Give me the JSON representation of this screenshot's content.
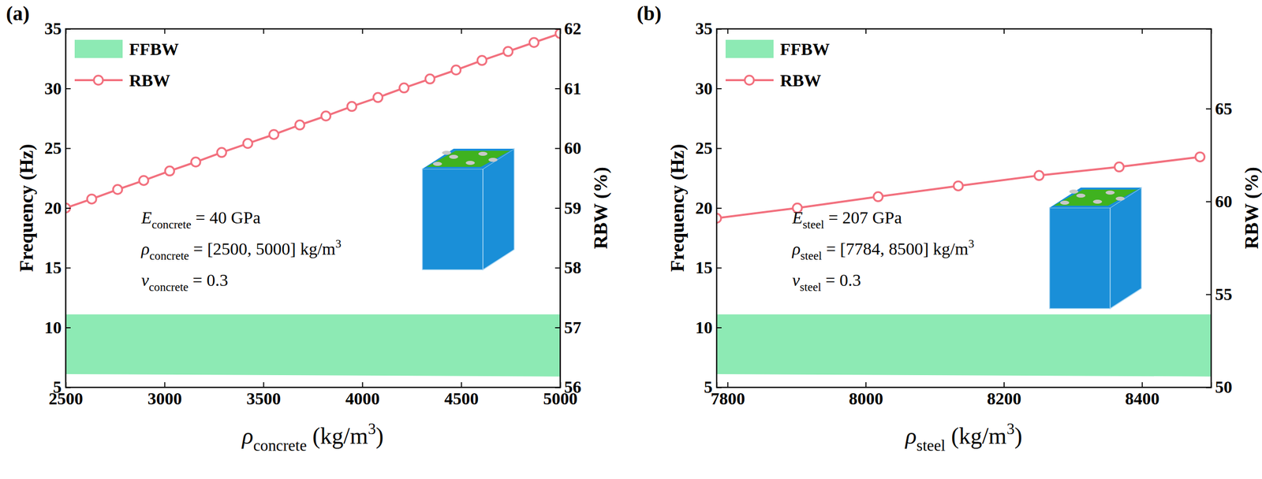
{
  "chart_data": [
    {
      "type": "line",
      "panel_label": "(a)",
      "xlabel": [
        {
          "text": "ρ",
          "style": "italic"
        },
        {
          "text": "concrete",
          "style": "sub"
        },
        {
          "text": " (kg/m"
        },
        {
          "text": "3",
          "style": "sup"
        },
        {
          "text": ")"
        }
      ],
      "ylabel": "Frequency (Hz)",
      "y2label": "RBW (%)",
      "xlim": [
        2500,
        5000
      ],
      "xticks": [
        2500,
        3000,
        3500,
        4000,
        4500,
        5000
      ],
      "ylim": [
        5,
        35
      ],
      "yticks": [
        5,
        10,
        15,
        20,
        25,
        30,
        35
      ],
      "y2lim": [
        56,
        62
      ],
      "y2ticks": [
        56,
        57,
        58,
        59,
        60,
        61,
        62
      ],
      "legend": "upper left",
      "annotations": [
        [
          {
            "text": "E",
            "style": "italic"
          },
          {
            "text": "concrete",
            "style": "sub"
          },
          {
            "text": " = 40 GPa"
          }
        ],
        [
          {
            "text": "ρ",
            "style": "italic"
          },
          {
            "text": "concrete",
            "style": "sub"
          },
          {
            "text": " = [2500, 5000] kg/m"
          },
          {
            "text": "3",
            "style": "sup"
          }
        ],
        [
          {
            "text": "ν",
            "style": "italic"
          },
          {
            "text": "concrete",
            "style": "sub"
          },
          {
            "text": " = 0.3"
          }
        ]
      ],
      "series": [
        {
          "name": "FFBW",
          "type": "area",
          "color": "#8deab4",
          "x": [
            2500,
            5000
          ],
          "lower": [
            6.1,
            5.9
          ],
          "upper": [
            11.1,
            11.1
          ]
        },
        {
          "name": "RBW",
          "type": "line",
          "axis": "y2",
          "color": "#f2707e",
          "marker": "circle",
          "x": [
            2500,
            2632,
            2763,
            2895,
            3026,
            3158,
            3289,
            3421,
            3553,
            3684,
            3816,
            3947,
            4079,
            4211,
            4342,
            4474,
            4605,
            4737,
            4868,
            5000
          ],
          "values": [
            59.0,
            59.15,
            59.31,
            59.46,
            59.62,
            59.77,
            59.93,
            60.08,
            60.23,
            60.39,
            60.54,
            60.7,
            60.85,
            61.01,
            61.16,
            61.31,
            61.47,
            61.62,
            61.77,
            61.92
          ]
        }
      ]
    },
    {
      "type": "line",
      "panel_label": "(b)",
      "xlabel": [
        {
          "text": "ρ",
          "style": "italic"
        },
        {
          "text": "steel",
          "style": "sub"
        },
        {
          "text": " (kg/m"
        },
        {
          "text": "3",
          "style": "sup"
        },
        {
          "text": ")"
        }
      ],
      "ylabel": "Frequency (Hz)",
      "y2label": "RBW (%)",
      "xlim": [
        7784,
        8500
      ],
      "xticks": [
        7800,
        8000,
        8200,
        8400
      ],
      "ylim": [
        5,
        35
      ],
      "yticks": [
        5,
        10,
        15,
        20,
        25,
        30,
        35
      ],
      "y2lim": [
        50,
        69.3
      ],
      "y2ticks": [
        50,
        55,
        60,
        65
      ],
      "legend": "upper left",
      "annotations": [
        [
          {
            "text": "E",
            "style": "italic"
          },
          {
            "text": "steel",
            "style": "sub"
          },
          {
            "text": " = 207 GPa"
          }
        ],
        [
          {
            "text": "ρ",
            "style": "italic"
          },
          {
            "text": "steel",
            "style": "sub"
          },
          {
            "text": " = [7784, 8500] kg/m"
          },
          {
            "text": "3",
            "style": "sup"
          }
        ],
        [
          {
            "text": "ν",
            "style": "italic"
          },
          {
            "text": "steel",
            "style": "sub"
          },
          {
            "text": " = 0.3"
          }
        ]
      ],
      "series": [
        {
          "name": "FFBW",
          "type": "area",
          "color": "#8deab4",
          "x": [
            7784,
            8500
          ],
          "lower": [
            6.1,
            5.9
          ],
          "upper": [
            11.1,
            11.1
          ]
        },
        {
          "name": "RBW",
          "type": "line",
          "axis": "y2",
          "color": "#f2707e",
          "marker": "circle",
          "x": [
            7784,
            7901,
            8018,
            8134,
            8251,
            8367,
            8484
          ],
          "values": [
            59.1,
            59.65,
            60.26,
            60.84,
            61.4,
            61.86,
            62.4
          ]
        }
      ]
    }
  ]
}
